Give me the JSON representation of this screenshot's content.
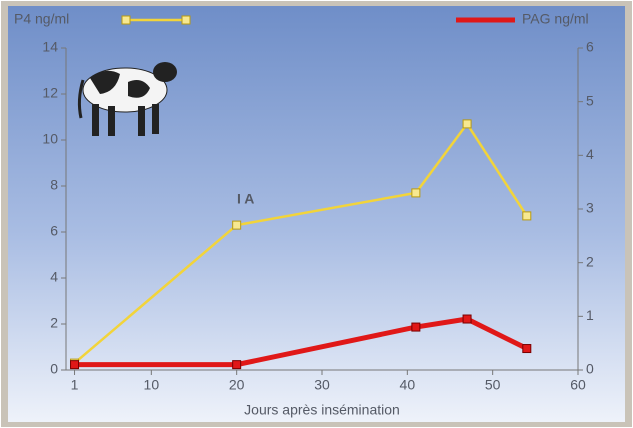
{
  "chart_data": {
    "type": "line",
    "x_label": "Jours après insémination",
    "annotations": [
      "I A"
    ],
    "xlim": [
      0,
      60
    ],
    "xticks": [
      1,
      10,
      20,
      30,
      40,
      50,
      60
    ],
    "ylim": [
      0,
      14
    ],
    "yticks": [
      0,
      2,
      4,
      6,
      8,
      10,
      12,
      14
    ],
    "y2lim": [
      0,
      6
    ],
    "y2ticks": [
      0,
      1,
      2,
      3,
      4,
      5,
      6
    ],
    "series": [
      {
        "name": "P4 ng/ml",
        "color": "#f2d43a",
        "x": [
          1,
          20,
          41,
          47,
          54
        ],
        "values": [
          0.3,
          6.3,
          7.7,
          10.7,
          6.7
        ]
      },
      {
        "name": "PAG ng/ml",
        "color": "#e01818",
        "axis": "y2",
        "x": [
          1,
          20,
          41,
          47,
          54
        ],
        "values": [
          0.1,
          0.1,
          0.8,
          0.95,
          0.4
        ]
      }
    ]
  }
}
